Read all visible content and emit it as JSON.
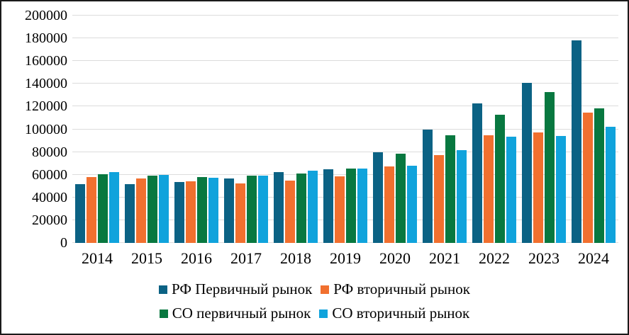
{
  "chart_data": {
    "type": "bar",
    "title": "",
    "xlabel": "",
    "ylabel": "",
    "categories": [
      "2014",
      "2015",
      "2016",
      "2017",
      "2018",
      "2019",
      "2020",
      "2021",
      "2022",
      "2023",
      "2024"
    ],
    "series": [
      {
        "name": "РФ Первичный рынок",
        "color": "#0b6284",
        "values": [
          52000,
          51500,
          53500,
          57000,
          62500,
          64500,
          80000,
          99500,
          123000,
          141000,
          178000
        ]
      },
      {
        "name": "РФ вторичный рынок",
        "color": "#f1702f",
        "values": [
          58000,
          56500,
          54500,
          52500,
          55000,
          58500,
          67000,
          77000,
          94500,
          97500,
          114500
        ]
      },
      {
        "name": "СО первичный рынок",
        "color": "#087840",
        "values": [
          60500,
          59000,
          58000,
          59000,
          61000,
          65500,
          78500,
          95000,
          113000,
          132500,
          118500
        ]
      },
      {
        "name": "СО вторичный рынок",
        "color": "#10a3dc",
        "values": [
          62000,
          60000,
          57500,
          59500,
          63500,
          65500,
          68000,
          81500,
          93500,
          94000,
          102000
        ]
      }
    ],
    "ylim": [
      0,
      200000
    ],
    "ytick_step": 20000,
    "yticks": [
      0,
      20000,
      40000,
      60000,
      80000,
      100000,
      120000,
      140000,
      160000,
      180000,
      200000
    ],
    "grid": "horizontal",
    "gridline_color": "#dcdcdc",
    "legend_position": "bottom",
    "legend_rows": [
      [
        0,
        1
      ],
      [
        2,
        3
      ]
    ]
  }
}
